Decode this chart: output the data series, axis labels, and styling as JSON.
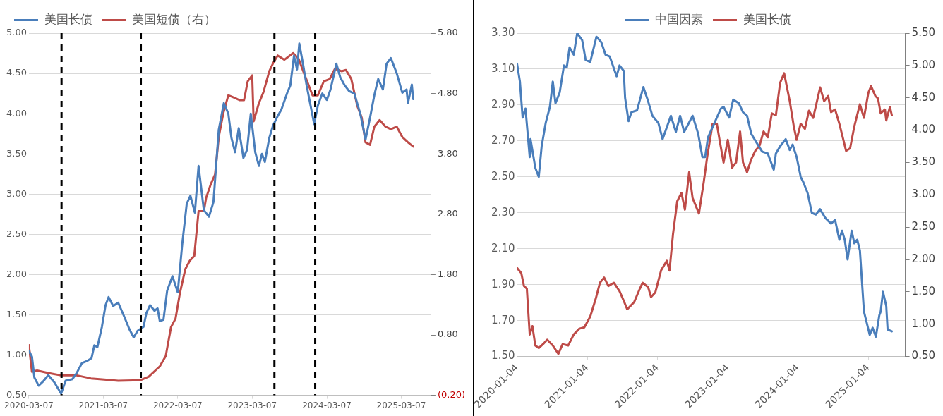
{
  "chart_data": [
    {
      "type": "line",
      "marker": "none",
      "grid": "y",
      "legend": "top left",
      "xlim": [
        "2020-03-07",
        "2025-08-01"
      ],
      "xticks": [
        "2020-03-07",
        "2021-03-07",
        "2022-03-07",
        "2023-03-07",
        "2024-03-07",
        "2025-03-07"
      ],
      "ylim": [
        0.5,
        5
      ],
      "yticks": [
        {
          "value": 0.5,
          "label": "0.50"
        },
        {
          "value": 1,
          "label": "1.00"
        },
        {
          "value": 1.5,
          "label": "1.50"
        },
        {
          "value": 2,
          "label": "2.00"
        },
        {
          "value": 2.5,
          "label": "2.50"
        },
        {
          "value": 3,
          "label": "3.00"
        },
        {
          "value": 3.5,
          "label": "3.50"
        },
        {
          "value": 4,
          "label": "4.00"
        },
        {
          "value": 4.5,
          "label": "4.50"
        },
        {
          "value": 5,
          "label": "5.00"
        }
      ],
      "y2lim": [
        -0.2,
        5.8
      ],
      "y2ticks": [
        {
          "value": -0.2,
          "label": "(0.20)"
        },
        {
          "value": 0.8,
          "label": "0.80"
        },
        {
          "value": 1.8,
          "label": "1.80"
        },
        {
          "value": 2.8,
          "label": "2.80"
        },
        {
          "value": 3.8,
          "label": "3.80"
        },
        {
          "value": 4.8,
          "label": "4.80"
        },
        {
          "value": 5.8,
          "label": "5.80"
        }
      ],
      "ref_lines": [
        {
          "axis": "x",
          "value": "2020-08-14",
          "color": "#000000",
          "line_style": "dashed"
        },
        {
          "axis": "x",
          "value": "2021-09-07",
          "color": "#000000",
          "line_style": "dashed"
        },
        {
          "axis": "x",
          "value": "2023-06-24",
          "color": "#000000",
          "line_style": "dashed"
        },
        {
          "axis": "x",
          "value": "2024-01-10",
          "color": "#000000",
          "line_style": "dashed"
        }
      ],
      "series": [
        {
          "name": "美国长债",
          "color": "#4a7ebb",
          "x": [
            "2020-03-07",
            "2020-03-22",
            "2020-04-03",
            "2020-04-24",
            "2020-05-15",
            "2020-06-10",
            "2020-07-10",
            "2020-08-12",
            "2020-09-03",
            "2020-10-06",
            "2020-10-28",
            "2020-11-22",
            "2020-12-20",
            "2021-01-08",
            "2021-01-22",
            "2021-02-06",
            "2021-02-28",
            "2021-03-18",
            "2021-04-02",
            "2021-04-24",
            "2021-05-19",
            "2021-06-17",
            "2021-07-13",
            "2021-08-03",
            "2021-08-22",
            "2021-09-20",
            "2021-10-04",
            "2021-10-22",
            "2021-11-13",
            "2021-11-28",
            "2021-12-09",
            "2021-12-27",
            "2022-01-14",
            "2022-02-09",
            "2022-03-07",
            "2022-03-29",
            "2022-04-20",
            "2022-05-08",
            "2022-05-30",
            "2022-06-17",
            "2022-07-13",
            "2022-08-07",
            "2022-08-29",
            "2022-09-24",
            "2022-10-19",
            "2022-11-10",
            "2022-11-25",
            "2022-12-13",
            "2022-12-31",
            "2023-01-23",
            "2023-02-10",
            "2023-02-28",
            "2023-03-22",
            "2023-04-09",
            "2023-04-24",
            "2023-05-08",
            "2023-05-30",
            "2023-06-17",
            "2023-07-10",
            "2023-07-28",
            "2023-08-26",
            "2023-09-10",
            "2023-09-28",
            "2023-10-13",
            "2023-10-24",
            "2023-11-11",
            "2023-11-29",
            "2024-01-05",
            "2024-01-23",
            "2024-02-14",
            "2024-03-07",
            "2024-03-25",
            "2024-04-23",
            "2024-05-12",
            "2024-06-03",
            "2024-06-24",
            "2024-07-20",
            "2024-08-18",
            "2024-09-13",
            "2024-10-05",
            "2024-10-26",
            "2024-11-14",
            "2024-12-07",
            "2024-12-25",
            "2025-01-15",
            "2025-02-13",
            "2025-03-12",
            "2025-04-02",
            "2025-04-09",
            "2025-04-28",
            "2025-05-05"
          ],
          "values": [
            1.05,
            0.98,
            0.72,
            0.62,
            0.67,
            0.75,
            0.66,
            0.52,
            0.68,
            0.7,
            0.78,
            0.9,
            0.93,
            0.96,
            1.12,
            1.1,
            1.35,
            1.62,
            1.72,
            1.61,
            1.65,
            1.48,
            1.32,
            1.22,
            1.3,
            1.35,
            1.52,
            1.62,
            1.55,
            1.58,
            1.42,
            1.44,
            1.8,
            1.98,
            1.78,
            2.38,
            2.88,
            2.98,
            2.77,
            3.35,
            2.8,
            2.72,
            2.9,
            3.8,
            4.13,
            4.0,
            3.7,
            3.52,
            3.82,
            3.45,
            3.55,
            4.0,
            3.52,
            3.35,
            3.5,
            3.4,
            3.7,
            3.85,
            3.97,
            4.05,
            4.26,
            4.35,
            4.72,
            4.55,
            4.87,
            4.62,
            4.35,
            3.87,
            4.1,
            4.25,
            4.17,
            4.3,
            4.62,
            4.45,
            4.35,
            4.28,
            4.25,
            4.0,
            3.68,
            3.95,
            4.23,
            4.43,
            4.3,
            4.62,
            4.69,
            4.5,
            4.26,
            4.3,
            4.13,
            4.36,
            4.18
          ]
        },
        {
          "name": "美国短债（右）",
          "color": "#be4b48",
          "axis": "y2",
          "x": [
            "2020-03-07",
            "2020-03-22",
            "2020-04-16",
            "2020-06-10",
            "2020-08-12",
            "2020-10-28",
            "2021-01-05",
            "2021-03-11",
            "2021-05-19",
            "2021-09-05",
            "2021-10-16",
            "2021-12-09",
            "2022-01-07",
            "2022-02-02",
            "2022-02-24",
            "2022-03-18",
            "2022-04-13",
            "2022-05-05",
            "2022-05-27",
            "2022-06-17",
            "2022-07-13",
            "2022-07-24",
            "2022-08-15",
            "2022-09-06",
            "2022-09-24",
            "2022-10-16",
            "2022-11-10",
            "2022-12-10",
            "2023-01-04",
            "2023-01-26",
            "2023-02-13",
            "2023-03-07",
            "2023-03-14",
            "2023-04-09",
            "2023-05-01",
            "2023-05-30",
            "2023-06-17",
            "2023-07-10",
            "2023-08-12",
            "2023-09-24",
            "2023-10-20",
            "2023-11-18",
            "2023-12-28",
            "2024-01-23",
            "2024-02-21",
            "2024-03-21",
            "2024-04-16",
            "2024-05-18",
            "2024-06-09",
            "2024-07-05",
            "2024-08-03",
            "2024-08-25",
            "2024-09-13",
            "2024-10-05",
            "2024-10-26",
            "2024-11-21",
            "2024-12-20",
            "2025-01-15",
            "2025-02-13",
            "2025-03-12",
            "2025-04-09",
            "2025-05-05"
          ],
          "values": [
            0.63,
            0.19,
            0.21,
            0.17,
            0.13,
            0.13,
            0.08,
            0.06,
            0.04,
            0.05,
            0.11,
            0.28,
            0.45,
            0.93,
            1.07,
            1.5,
            1.89,
            2.03,
            2.11,
            2.85,
            2.85,
            3.07,
            3.29,
            3.46,
            4.08,
            4.47,
            4.77,
            4.73,
            4.69,
            4.69,
            5.0,
            5.1,
            4.34,
            4.64,
            4.82,
            5.17,
            5.3,
            5.43,
            5.36,
            5.47,
            5.38,
            5.12,
            4.77,
            4.77,
            5.0,
            5.04,
            5.21,
            5.17,
            5.19,
            5.04,
            4.6,
            4.4,
            3.99,
            3.95,
            4.25,
            4.36,
            4.25,
            4.21,
            4.25,
            4.08,
            3.99,
            3.92
          ]
        }
      ]
    },
    {
      "type": "line",
      "marker": "none",
      "grid": "y",
      "legend": "top",
      "xlim": [
        "2020-01-04",
        "2025-07-15"
      ],
      "xticks": [
        "2020-01-04",
        "2021-01-04",
        "2022-01-04",
        "2023-01-04",
        "2024-01-04",
        "2025-01-04"
      ],
      "ylim": [
        1.5,
        3.3
      ],
      "yticks": [
        {
          "value": 1.5,
          "label": "1.50"
        },
        {
          "value": 1.7,
          "label": "1.70"
        },
        {
          "value": 1.9,
          "label": "1.90"
        },
        {
          "value": 2.1,
          "label": "2.10"
        },
        {
          "value": 2.3,
          "label": "2.30"
        },
        {
          "value": 2.5,
          "label": "2.50"
        },
        {
          "value": 2.7,
          "label": "2.70"
        },
        {
          "value": 2.9,
          "label": "2.90"
        },
        {
          "value": 3.1,
          "label": "3.10"
        },
        {
          "value": 3.3,
          "label": "3.30"
        }
      ],
      "y2lim": [
        0.5,
        5.5
      ],
      "y2ticks": [
        {
          "value": 0.5,
          "label": "0.50"
        },
        {
          "value": 1,
          "label": "1.00"
        },
        {
          "value": 1.5,
          "label": "1.50"
        },
        {
          "value": 2,
          "label": "2.00"
        },
        {
          "value": 2.5,
          "label": "2.50"
        },
        {
          "value": 3,
          "label": "3.00"
        },
        {
          "value": 3.5,
          "label": "3.50"
        },
        {
          "value": 4,
          "label": "4.00"
        },
        {
          "value": 4.5,
          "label": "4.50"
        },
        {
          "value": 5,
          "label": "5.00"
        },
        {
          "value": 5.5,
          "label": "5.50"
        }
      ],
      "series": [
        {
          "name": "中国因素",
          "color": "#4a7ebb",
          "x": [
            "2020-01-04",
            "2020-01-19",
            "2020-02-02",
            "2020-02-17",
            "2020-03-10",
            "2020-03-14",
            "2020-04-08",
            "2020-04-26",
            "2020-05-11",
            "2020-06-01",
            "2020-06-23",
            "2020-07-08",
            "2020-07-22",
            "2020-08-13",
            "2020-09-04",
            "2020-09-19",
            "2020-10-03",
            "2020-10-25",
            "2020-11-12",
            "2020-12-08",
            "2020-12-26",
            "2021-01-19",
            "2021-02-20",
            "2021-03-17",
            "2021-04-08",
            "2021-04-30",
            "2021-06-05",
            "2021-06-20",
            "2021-07-12",
            "2021-07-19",
            "2021-08-06",
            "2021-08-21",
            "2021-09-19",
            "2021-10-22",
            "2021-11-16",
            "2021-12-08",
            "2022-01-08",
            "2022-01-30",
            "2022-03-14",
            "2022-04-09",
            "2022-05-01",
            "2022-05-22",
            "2022-07-05",
            "2022-08-03",
            "2022-08-25",
            "2022-09-08",
            "2022-09-23",
            "2022-11-29",
            "2022-12-13",
            "2023-01-11",
            "2023-02-01",
            "2023-03-02",
            "2023-03-24",
            "2023-04-14",
            "2023-05-06",
            "2023-06-03",
            "2023-07-02",
            "2023-07-31",
            "2023-08-31",
            "2023-09-11",
            "2023-10-03",
            "2023-11-01",
            "2023-11-22",
            "2023-12-07",
            "2023-12-28",
            "2024-01-18",
            "2024-02-01",
            "2024-02-23",
            "2024-03-16",
            "2024-04-06",
            "2024-04-28",
            "2024-05-26",
            "2024-06-24",
            "2024-07-15",
            "2024-08-06",
            "2024-08-20",
            "2024-09-03",
            "2024-09-18",
            "2024-10-09",
            "2024-10-23",
            "2024-11-07",
            "2024-11-21",
            "2024-12-12",
            "2024-12-26",
            "2025-01-11",
            "2025-01-26",
            "2025-02-12",
            "2025-03-02",
            "2025-03-09",
            "2025-03-21",
            "2025-04-07",
            "2025-04-14",
            "2025-05-06"
          ],
          "values": [
            3.13,
            3.03,
            2.83,
            2.88,
            2.61,
            2.71,
            2.55,
            2.5,
            2.67,
            2.8,
            2.89,
            3.03,
            2.91,
            2.97,
            3.12,
            3.11,
            3.22,
            3.18,
            3.3,
            3.26,
            3.15,
            3.14,
            3.28,
            3.25,
            3.18,
            3.17,
            3.06,
            3.12,
            3.09,
            2.94,
            2.81,
            2.86,
            2.87,
            3.0,
            2.92,
            2.84,
            2.8,
            2.71,
            2.84,
            2.75,
            2.84,
            2.75,
            2.84,
            2.74,
            2.61,
            2.61,
            2.72,
            2.88,
            2.89,
            2.83,
            2.93,
            2.91,
            2.86,
            2.84,
            2.74,
            2.69,
            2.64,
            2.63,
            2.54,
            2.63,
            2.67,
            2.71,
            2.65,
            2.68,
            2.61,
            2.5,
            2.47,
            2.41,
            2.3,
            2.29,
            2.32,
            2.27,
            2.24,
            2.26,
            2.15,
            2.2,
            2.15,
            2.04,
            2.2,
            2.13,
            2.15,
            2.09,
            1.75,
            1.69,
            1.62,
            1.66,
            1.61,
            1.73,
            1.75,
            1.86,
            1.78,
            1.65,
            1.64
          ]
        },
        {
          "name": "美国长债",
          "color": "#be4b48",
          "axis": "y2",
          "x": [
            "2020-01-04",
            "2020-01-26",
            "2020-02-09",
            "2020-02-24",
            "2020-03-10",
            "2020-03-24",
            "2020-04-08",
            "2020-04-26",
            "2020-05-18",
            "2020-06-09",
            "2020-07-08",
            "2020-08-06",
            "2020-08-28",
            "2020-09-26",
            "2020-10-25",
            "2020-11-23",
            "2020-12-19",
            "2021-01-19",
            "2021-02-17",
            "2021-03-10",
            "2021-04-01",
            "2021-04-23",
            "2021-05-22",
            "2021-06-20",
            "2021-07-12",
            "2021-07-30",
            "2021-09-04",
            "2021-10-04",
            "2021-10-18",
            "2021-11-16",
            "2021-12-01",
            "2021-12-23",
            "2022-01-22",
            "2022-02-21",
            "2022-03-07",
            "2022-03-25",
            "2022-04-16",
            "2022-05-08",
            "2022-05-26",
            "2022-06-17",
            "2022-07-05",
            "2022-08-07",
            "2022-09-01",
            "2022-09-19",
            "2022-10-17",
            "2022-11-08",
            "2022-11-22",
            "2022-12-13",
            "2023-01-04",
            "2023-01-26",
            "2023-02-16",
            "2023-03-09",
            "2023-03-24",
            "2023-04-14",
            "2023-05-06",
            "2023-05-27",
            "2023-06-18",
            "2023-07-09",
            "2023-07-31",
            "2023-08-21",
            "2023-09-11",
            "2023-10-03",
            "2023-10-24",
            "2023-11-22",
            "2023-12-13",
            "2023-12-28",
            "2024-01-18",
            "2024-02-09",
            "2024-03-01",
            "2024-03-23",
            "2024-04-28",
            "2024-05-19",
            "2024-06-09",
            "2024-06-24",
            "2024-07-15",
            "2024-08-06",
            "2024-08-27",
            "2024-09-10",
            "2024-10-01",
            "2024-10-23",
            "2024-11-21",
            "2024-12-12",
            "2025-01-04",
            "2025-01-18",
            "2025-02-09",
            "2025-02-23",
            "2025-03-09",
            "2025-03-31",
            "2025-04-07",
            "2025-04-26",
            "2025-05-06"
          ],
          "values": [
            1.87,
            1.79,
            1.59,
            1.55,
            0.84,
            0.97,
            0.67,
            0.63,
            0.69,
            0.76,
            0.67,
            0.54,
            0.69,
            0.67,
            0.84,
            0.93,
            0.95,
            1.12,
            1.4,
            1.64,
            1.72,
            1.59,
            1.64,
            1.51,
            1.36,
            1.23,
            1.34,
            1.55,
            1.64,
            1.57,
            1.42,
            1.49,
            1.83,
            1.98,
            1.83,
            2.39,
            2.9,
            3.03,
            2.77,
            3.35,
            2.95,
            2.71,
            3.2,
            3.59,
            4.1,
            4.1,
            3.85,
            3.5,
            3.85,
            3.42,
            3.5,
            3.98,
            3.5,
            3.35,
            3.55,
            3.68,
            3.76,
            3.98,
            3.89,
            4.26,
            4.23,
            4.73,
            4.88,
            4.45,
            4.06,
            3.85,
            4.1,
            4.02,
            4.3,
            4.19,
            4.66,
            4.45,
            4.53,
            4.28,
            4.32,
            4.1,
            3.85,
            3.68,
            3.72,
            4.06,
            4.4,
            4.19,
            4.58,
            4.68,
            4.53,
            4.49,
            4.26,
            4.32,
            4.15,
            4.36,
            4.23
          ]
        }
      ]
    }
  ]
}
